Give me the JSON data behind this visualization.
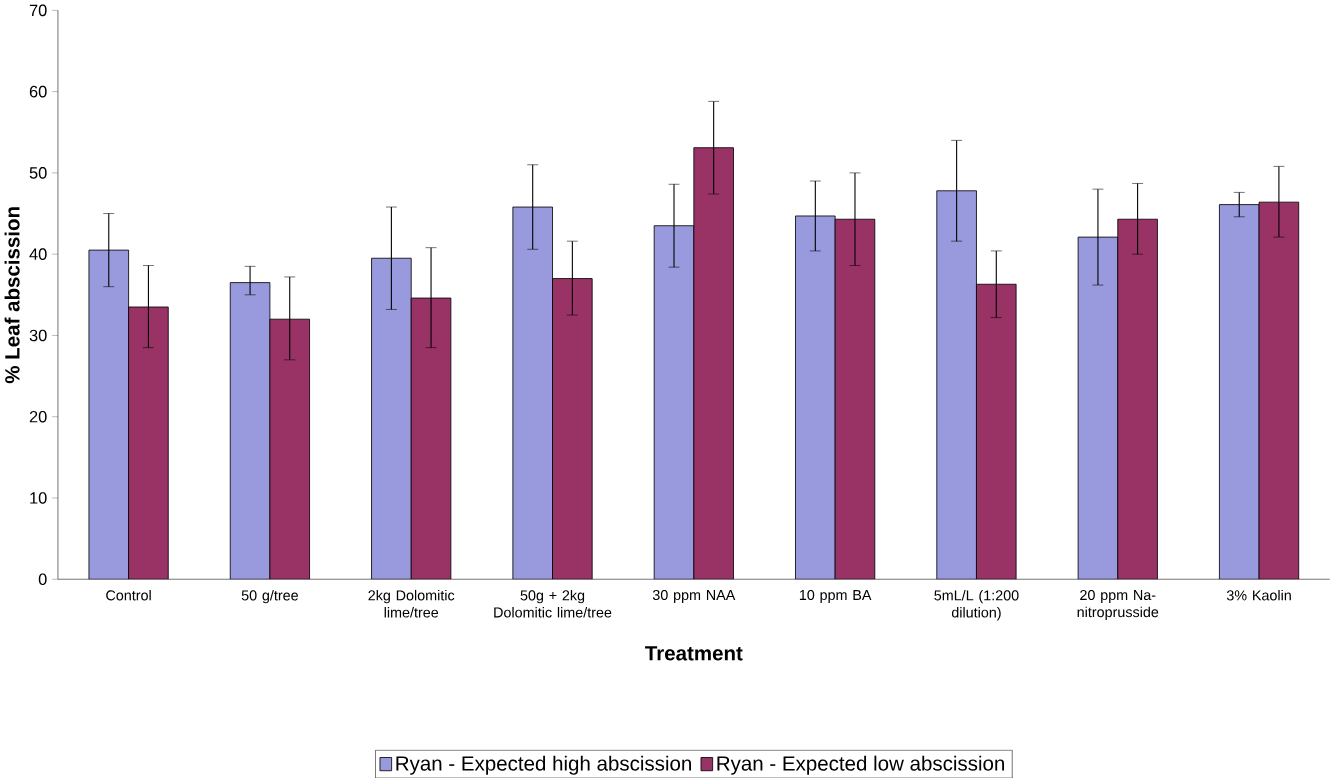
{
  "chart_data": {
    "type": "bar",
    "xlabel": "Treatment",
    "ylabel": "% Leaf abscission",
    "categories": [
      "Control",
      "50 g/tree",
      "2kg Dolomitic lime/tree",
      "50g + 2kg Dolomitic lime/tree",
      "30 ppm NAA",
      "10 ppm BA",
      "5mL/L (1:200 dilution)",
      "20 ppm Na-nitroprusside",
      "3% Kaolin"
    ],
    "series": [
      {
        "name": "Ryan - Expected high abscission",
        "color": "#9999dd",
        "values": [
          40.5,
          36.5,
          39.5,
          45.8,
          43.5,
          44.7,
          47.8,
          42.1,
          46.1
        ],
        "errors": [
          [
            36,
            45
          ],
          [
            35,
            38.5
          ],
          [
            33.2,
            45.8
          ],
          [
            40.6,
            51
          ],
          [
            38.4,
            48.6
          ],
          [
            40.4,
            49
          ],
          [
            41.6,
            54
          ],
          [
            36.2,
            48
          ],
          [
            44.6,
            47.6
          ]
        ]
      },
      {
        "name": "Ryan - Expected low abscission",
        "color": "#993366",
        "values": [
          33.5,
          32,
          34.6,
          37,
          53.1,
          44.3,
          36.3,
          44.3,
          46.4
        ],
        "errors": [
          [
            28.5,
            38.6
          ],
          [
            27,
            37.2
          ],
          [
            28.5,
            40.8
          ],
          [
            32.5,
            41.6
          ],
          [
            47.4,
            58.8
          ],
          [
            38.6,
            50
          ],
          [
            32.2,
            40.4
          ],
          [
            40,
            48.7
          ],
          [
            42.1,
            50.8
          ]
        ]
      }
    ],
    "ylim": [
      0,
      70
    ],
    "yticks": [
      0,
      10,
      20,
      30,
      40,
      50,
      60,
      70
    ],
    "legend": "bottom"
  }
}
